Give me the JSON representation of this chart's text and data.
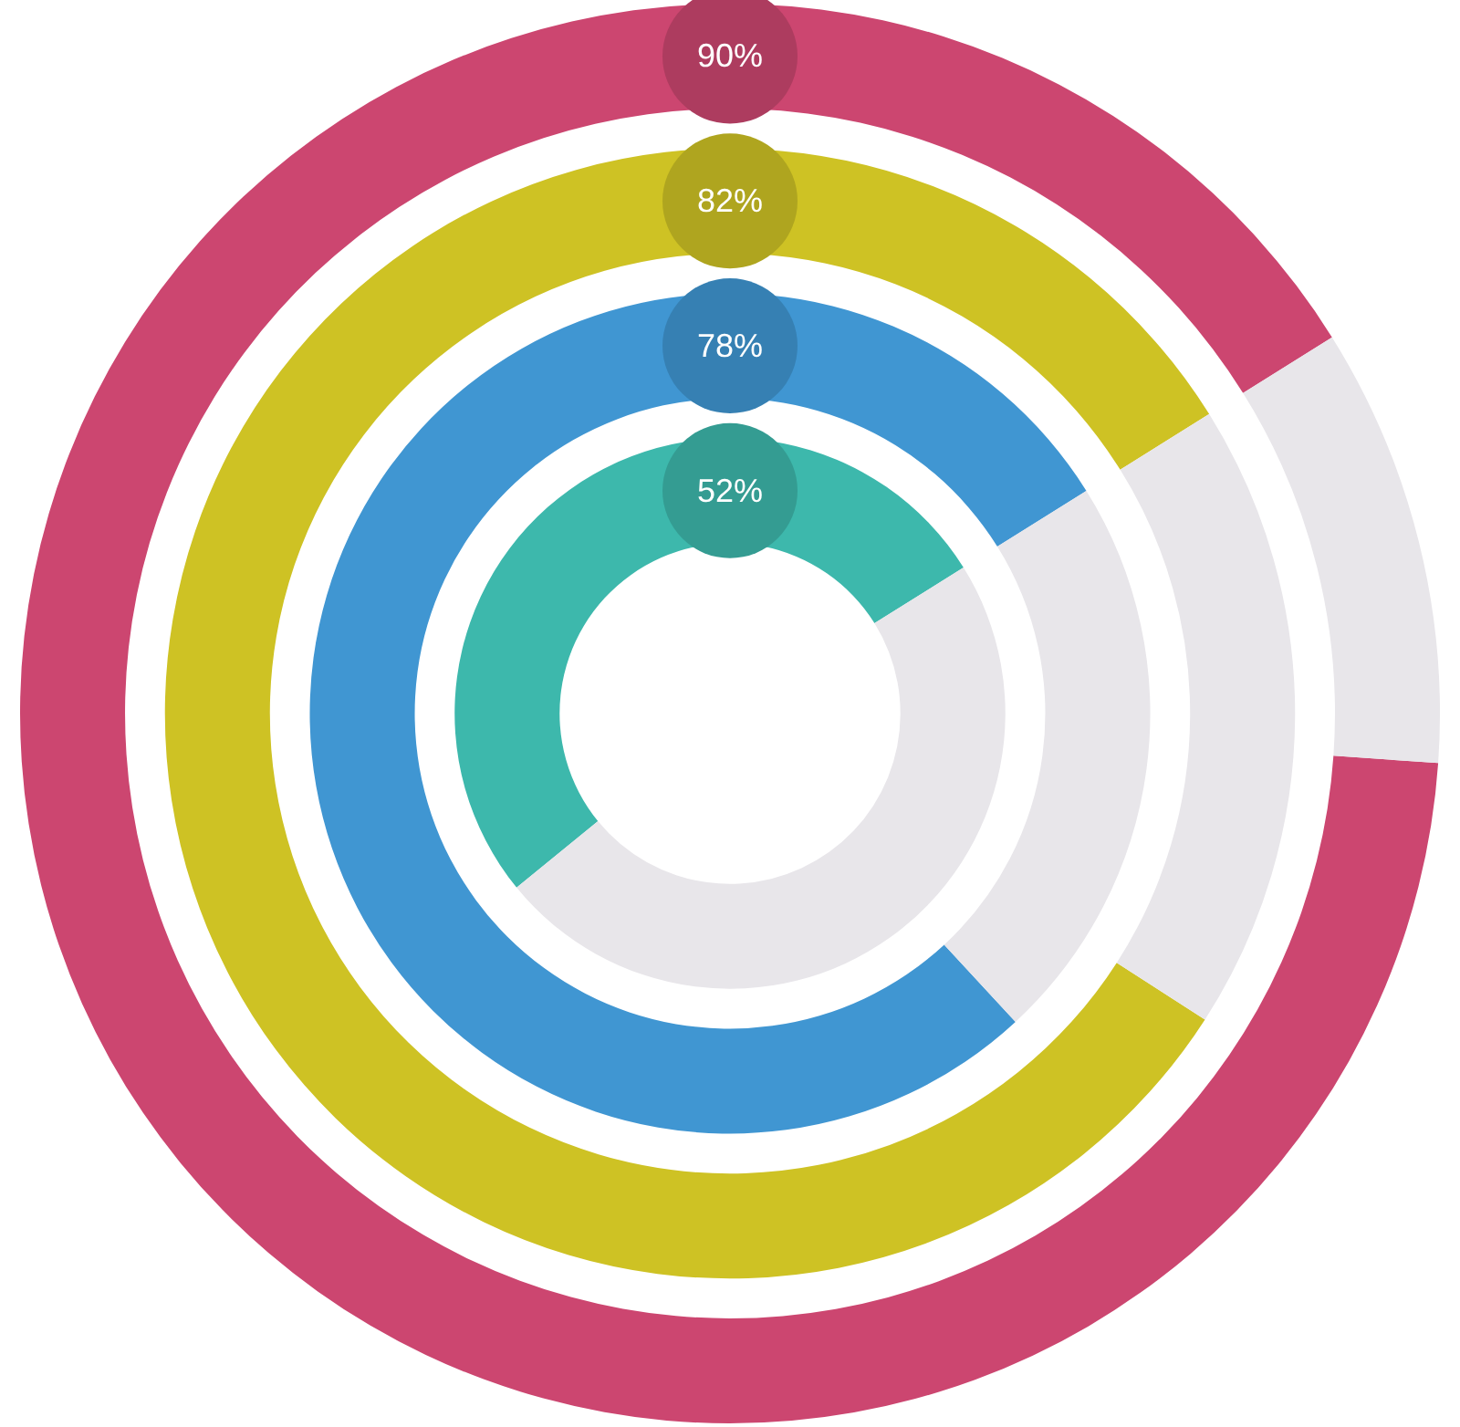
{
  "chart_data": {
    "type": "donut",
    "categories": [
      null,
      null
    ],
    "series": [
      {
        "values": [
          90,
          10
        ],
        "colors": [
          "#cc4670",
          "#e8e6ea"
        ],
        "value_labels": [
          "90%",
          null
        ]
      },
      {
        "values": [
          82,
          18
        ],
        "colors": [
          "#cec224",
          "#e8e6ea"
        ],
        "value_labels": [
          "82%",
          null
        ]
      },
      {
        "values": [
          78,
          22
        ],
        "colors": [
          "#4096d2",
          "#e8e6ea"
        ],
        "value_labels": [
          "78%",
          null
        ]
      },
      {
        "values": [
          52,
          48
        ],
        "colors": [
          "#3db8ac",
          "#e8e6ea"
        ],
        "value_labels": [
          "52%",
          null
        ]
      }
    ]
  }
}
